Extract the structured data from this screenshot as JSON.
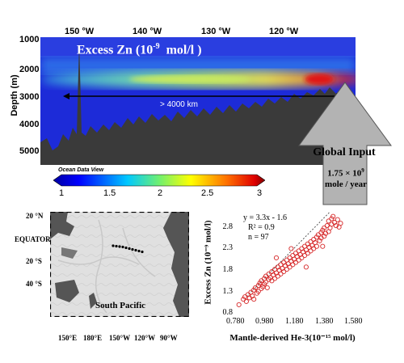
{
  "section": {
    "title_main": "Excess Zn (10",
    "title_exp": "-9",
    "title_unit": "  mol/l )",
    "ylabel": "Depth (m)",
    "lon_ticks": [
      "150 °W",
      "140 °W",
      "130 °W",
      "120 °W"
    ],
    "depth_ticks": [
      "1000",
      "2000",
      "3000",
      "4000",
      "5000"
    ],
    "distance_label": "> 4000 km",
    "odv_label": "Ocean Data View"
  },
  "colorbar": {
    "ticks": [
      "1",
      "1.5",
      "2",
      "2.5",
      "3"
    ]
  },
  "global_input": {
    "title": "Global Input",
    "value_main": "1.75 × 10",
    "value_exp": "9",
    "value_unit": "mole / year"
  },
  "map": {
    "lat_labels": [
      "20 °N",
      "EQUATOR",
      "20 °S",
      "40 °S"
    ],
    "lon_labels": [
      "150°E",
      "180°E",
      "150°W",
      "120°W",
      "90°W"
    ],
    "region_label": "South Pacific"
  },
  "chart_data": {
    "type": "scatter",
    "xlabel": "Mantle-derived He-3(10⁻¹⁵ mol/l)",
    "ylabel": "Excess Zn (10⁻⁹ mol/l)",
    "xlim": [
      0.78,
      1.58
    ],
    "ylim": [
      0.8,
      3.05
    ],
    "xticks": [
      "0.780",
      "0.980",
      "1.180",
      "1.380",
      "1.580"
    ],
    "yticks": [
      "0.8",
      "1.3",
      "1.8",
      "2.3",
      "2.8"
    ],
    "annotation": [
      "y = 3.3x - 1.6",
      "R² = 0.9",
      "n = 97"
    ],
    "trendline": {
      "slope": 3.3,
      "intercept": -1.6
    },
    "points": [
      [
        0.8,
        1.03
      ],
      [
        0.83,
        1.15
      ],
      [
        0.84,
        1.2
      ],
      [
        0.85,
        1.1
      ],
      [
        0.86,
        1.25
      ],
      [
        0.87,
        1.18
      ],
      [
        0.88,
        1.3
      ],
      [
        0.89,
        1.22
      ],
      [
        0.9,
        1.35
      ],
      [
        0.9,
        1.15
      ],
      [
        0.91,
        1.4
      ],
      [
        0.92,
        1.28
      ],
      [
        0.93,
        1.45
      ],
      [
        0.93,
        1.32
      ],
      [
        0.94,
        1.5
      ],
      [
        0.95,
        1.38
      ],
      [
        0.95,
        1.55
      ],
      [
        0.96,
        1.42
      ],
      [
        0.97,
        1.6
      ],
      [
        0.97,
        1.48
      ],
      [
        0.98,
        1.52
      ],
      [
        0.98,
        1.65
      ],
      [
        0.99,
        1.4
      ],
      [
        1.0,
        1.7
      ],
      [
        1.0,
        1.58
      ],
      [
        1.01,
        1.62
      ],
      [
        1.02,
        1.75
      ],
      [
        1.02,
        1.55
      ],
      [
        1.03,
        1.68
      ],
      [
        1.04,
        1.8
      ],
      [
        1.04,
        1.6
      ],
      [
        1.05,
        1.72
      ],
      [
        1.06,
        1.85
      ],
      [
        1.06,
        1.65
      ],
      [
        1.07,
        1.78
      ],
      [
        1.08,
        1.9
      ],
      [
        1.08,
        1.7
      ],
      [
        1.09,
        1.82
      ],
      [
        1.1,
        1.95
      ],
      [
        1.1,
        1.75
      ],
      [
        1.11,
        1.88
      ],
      [
        1.12,
        2.0
      ],
      [
        1.12,
        1.8
      ],
      [
        1.13,
        1.92
      ],
      [
        1.14,
        2.05
      ],
      [
        1.14,
        1.85
      ],
      [
        1.15,
        1.98
      ],
      [
        1.16,
        2.1
      ],
      [
        1.16,
        1.9
      ],
      [
        1.17,
        2.02
      ],
      [
        1.18,
        2.15
      ],
      [
        1.18,
        1.95
      ],
      [
        1.19,
        2.08
      ],
      [
        1.2,
        2.2
      ],
      [
        1.2,
        2.0
      ],
      [
        1.21,
        2.12
      ],
      [
        1.22,
        2.25
      ],
      [
        1.22,
        2.05
      ],
      [
        1.23,
        2.18
      ],
      [
        1.24,
        2.3
      ],
      [
        1.24,
        2.1
      ],
      [
        1.25,
        2.22
      ],
      [
        1.26,
        2.35
      ],
      [
        1.26,
        2.15
      ],
      [
        1.27,
        2.28
      ],
      [
        1.28,
        2.4
      ],
      [
        1.28,
        2.2
      ],
      [
        1.29,
        2.32
      ],
      [
        1.3,
        2.45
      ],
      [
        1.3,
        2.25
      ],
      [
        1.31,
        2.38
      ],
      [
        1.32,
        2.5
      ],
      [
        1.32,
        2.3
      ],
      [
        1.33,
        2.55
      ],
      [
        1.34,
        2.42
      ],
      [
        1.35,
        2.6
      ],
      [
        1.35,
        2.48
      ],
      [
        1.36,
        2.65
      ],
      [
        1.37,
        2.52
      ],
      [
        1.37,
        2.7
      ],
      [
        1.38,
        2.58
      ],
      [
        1.39,
        2.75
      ],
      [
        1.4,
        2.62
      ],
      [
        1.4,
        2.85
      ],
      [
        1.41,
        2.7
      ],
      [
        1.42,
        2.9
      ],
      [
        1.42,
        2.78
      ],
      [
        1.43,
        2.95
      ],
      [
        1.44,
        2.82
      ],
      [
        1.45,
        2.75
      ],
      [
        1.46,
        2.88
      ],
      [
        1.47,
        2.72
      ],
      [
        1.48,
        2.8
      ],
      [
        1.36,
        2.3
      ],
      [
        1.25,
        1.85
      ],
      [
        1.15,
        2.25
      ],
      [
        1.05,
        2.05
      ]
    ],
    "marker_color": "#d62728"
  }
}
